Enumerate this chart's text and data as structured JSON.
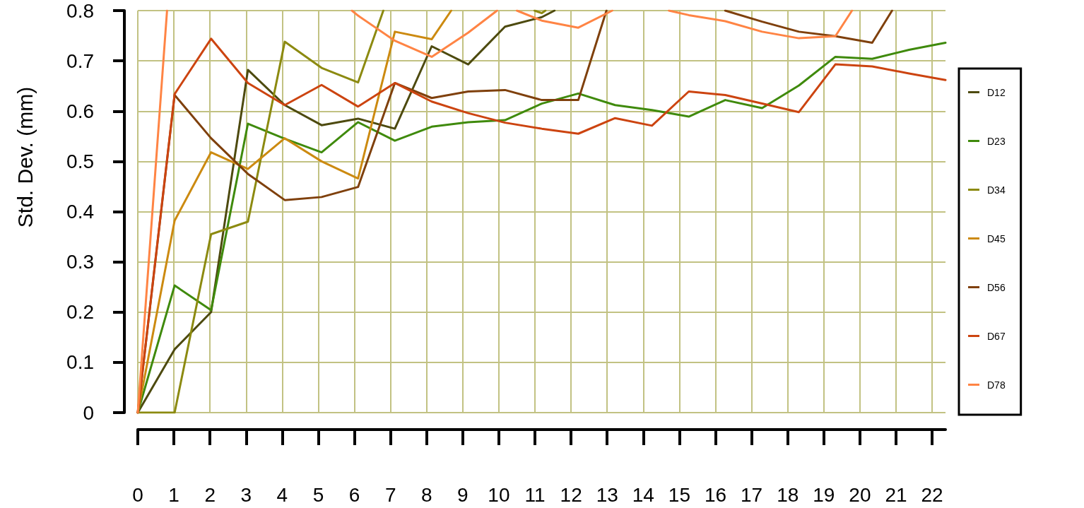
{
  "chart_data": {
    "type": "line",
    "ylabel": "Std. Dev. (mm)",
    "x": [
      0,
      1.02,
      2.03,
      3.05,
      4.07,
      5.09,
      6.1,
      7.12,
      8.14,
      9.15,
      10.17,
      11.19,
      12.2,
      13.22,
      14.24,
      15.26,
      16.27,
      17.29,
      18.31,
      19.32,
      20.34,
      21.36,
      22.37
    ],
    "xlim": [
      0,
      22.37
    ],
    "xticks": [
      0,
      1,
      2,
      3,
      4,
      5,
      6,
      7,
      8,
      9,
      10,
      11,
      12,
      13,
      14,
      15,
      16,
      17,
      18,
      19,
      20,
      21,
      22
    ],
    "ylim": [
      0,
      0.8
    ],
    "yticks": [
      0,
      0.1,
      0.2,
      0.3,
      0.4,
      0.5,
      0.6,
      0.7,
      0.8
    ],
    "grid": true,
    "legend": "right",
    "series": [
      {
        "name": "D12",
        "color": "#4d4a0f",
        "x": [
          0,
          1.02,
          2.03,
          3.05,
          4.07,
          5.09,
          6.1,
          7.12,
          8.14,
          9.15,
          10.17,
          11.19,
          11.54
        ],
        "values": [
          0,
          0.126,
          0.2,
          0.682,
          0.612,
          0.572,
          0.585,
          0.565,
          0.729,
          0.693,
          0.768,
          0.787,
          0.8
        ]
      },
      {
        "name": "D23",
        "color": "#3f8a0c",
        "values": [
          0,
          0.253,
          0.204,
          0.575,
          0.545,
          0.518,
          0.578,
          0.541,
          0.569,
          0.578,
          0.582,
          0.615,
          0.635,
          0.612,
          0.602,
          0.589,
          0.622,
          0.606,
          0.651,
          0.708,
          0.704,
          0.722,
          0.736
        ]
      },
      {
        "name": "D34",
        "color": "#8c8a10",
        "x": [
          0,
          1.02,
          2.03,
          3.05,
          4.07,
          5.09,
          6.1,
          6.8,
          9,
          10.99,
          11.19,
          11.29
        ],
        "values": [
          0,
          0,
          0.355,
          0.38,
          0.738,
          0.686,
          0.657,
          0.8,
          null,
          0.8,
          0.795,
          0.8
        ]
      },
      {
        "name": "D45",
        "color": "#cc8a10",
        "x": [
          0,
          1.02,
          2.03,
          3.05,
          4.07,
          5.09,
          6.1,
          7.12,
          8.14,
          8.68
        ],
        "values": [
          0,
          0.382,
          0.518,
          0.485,
          0.546,
          0.5,
          0.466,
          0.758,
          0.743,
          0.8
        ]
      },
      {
        "name": "D56",
        "color": "#7f400c",
        "x": [
          0,
          1.02,
          2.03,
          3.05,
          4.07,
          5.09,
          6.1,
          7.12,
          8.14,
          9.15,
          10.17,
          11.19,
          12.2,
          12.98,
          14.6,
          16.27,
          17.29,
          18.31,
          19.32,
          20.34,
          20.89
        ],
        "values": [
          0,
          0.632,
          0.546,
          0.475,
          0.423,
          0.429,
          0.449,
          0.656,
          0.626,
          0.639,
          0.642,
          0.622,
          0.622,
          0.8,
          null,
          0.8,
          0.778,
          0.758,
          0.749,
          0.736,
          0.8
        ]
      },
      {
        "name": "D67",
        "color": "#cc4410",
        "values": [
          0,
          0.634,
          0.744,
          0.656,
          0.612,
          0.652,
          0.609,
          0.656,
          0.619,
          0.596,
          0.577,
          0.565,
          0.555,
          0.586,
          0.571,
          0.639,
          0.632,
          0.615,
          0.598,
          0.693,
          0.689,
          0.675,
          0.662
        ]
      },
      {
        "name": "D78",
        "color": "#ff8444",
        "x": [
          0,
          0.81,
          3.4,
          5.93,
          6.1,
          7.12,
          8.14,
          9.15,
          9.95,
          10.2,
          10.5,
          11.19,
          12.2,
          13.14,
          14,
          14.71,
          15.26,
          16.27,
          17.29,
          18.31,
          19.32,
          19.78
        ],
        "values": [
          0,
          0.8,
          null,
          0.8,
          0.79,
          0.74,
          0.708,
          0.756,
          0.8,
          null,
          0.8,
          0.78,
          0.766,
          0.8,
          null,
          0.8,
          0.791,
          0.779,
          0.758,
          0.745,
          0.749,
          0.8
        ]
      }
    ]
  }
}
